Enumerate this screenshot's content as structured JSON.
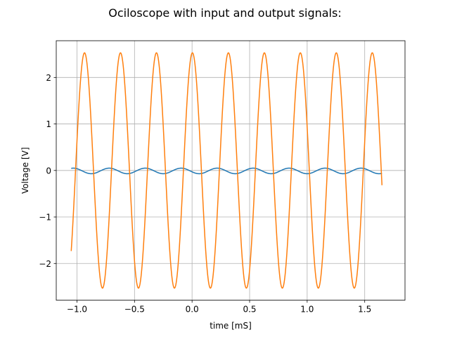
{
  "chart_data": {
    "type": "line",
    "title": "Ociloscope with input and output signals:",
    "xlabel": "time [mS]",
    "ylabel": "Voltage [V]",
    "xlim": [
      -1.18,
      1.85
    ],
    "ylim": [
      -2.79,
      2.79
    ],
    "xticks": [
      -1.0,
      -0.5,
      0.0,
      0.5,
      1.0,
      1.5
    ],
    "xtick_labels": [
      "−1.0",
      "−0.5",
      "0.0",
      "0.5",
      "1.0",
      "1.5"
    ],
    "yticks": [
      -2,
      -1,
      0,
      1,
      2
    ],
    "ytick_labels": [
      "−2",
      "−1",
      "0",
      "1",
      "2"
    ],
    "grid": true,
    "series": [
      {
        "color": "#1f77b4",
        "function": "sine",
        "x_range": [
          -1.05,
          1.65
        ],
        "amplitude": 0.06,
        "period_ms": 0.3125,
        "phase_zero_at_ms": -1.11,
        "offset": -0.01
      },
      {
        "color": "#ff7f0e",
        "function": "sine",
        "x_range": [
          -1.05,
          1.65
        ],
        "amplitude": 2.53,
        "period_ms": 0.3125,
        "phase_zero_at_ms": -0.7
      }
    ]
  }
}
